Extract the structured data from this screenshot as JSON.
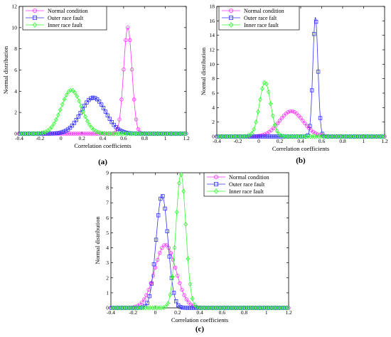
{
  "panel_labels": [
    "(a)",
    "(b)",
    "(c)"
  ],
  "colors": {
    "normal": "#ff33ff",
    "outer": "#3333ff",
    "inner": "#33ff33",
    "axis": "#000000",
    "legend_border": "#000000"
  },
  "icons": {
    "normal": "circle-marker-icon",
    "outer": "square-marker-icon",
    "inner": "diamond-marker-icon"
  },
  "chart_data": [
    {
      "type": "line",
      "panel": "(a)",
      "xlabel": "Correlation coefficients",
      "ylabel": "Normal distribution",
      "xlim": [
        -0.4,
        1.2
      ],
      "ylim": [
        0,
        12
      ],
      "xticks": [
        "-0.4",
        "-0.2",
        "0",
        "0.2",
        "0.4",
        "0.6",
        "0.8",
        "1",
        "1.2"
      ],
      "yticks": [
        "0",
        "2",
        "4",
        "6",
        "8",
        "10",
        "12"
      ],
      "legend_position": "top-left",
      "grid": false,
      "series": [
        {
          "name": "Normal condition",
          "key": "normal",
          "marker": "circle",
          "mean": 0.64,
          "peak": 10.0
        },
        {
          "name": "Outer race fault",
          "key": "outer",
          "marker": "square",
          "mean": 0.31,
          "peak": 3.4
        },
        {
          "name": "Inner race fault",
          "key": "inner",
          "marker": "diamond",
          "mean": 0.1,
          "peak": 4.1
        }
      ]
    },
    {
      "type": "line",
      "panel": "(b)",
      "xlabel": "Correlation coefficients",
      "ylabel": "Normal distribution",
      "xlim": [
        -0.4,
        1.2
      ],
      "ylim": [
        0,
        18
      ],
      "xticks": [
        "-0.4",
        "-0.2",
        "0",
        "0.2",
        "0.4",
        "0.6",
        "0.8",
        "1",
        "1.2"
      ],
      "yticks": [
        "0",
        "2",
        "4",
        "6",
        "8",
        "10",
        "12",
        "14",
        "16",
        "18"
      ],
      "legend_position": "top-left",
      "grid": false,
      "series": [
        {
          "name": "Normal condition",
          "key": "normal",
          "marker": "circle",
          "mean": 0.31,
          "peak": 3.5
        },
        {
          "name": "Outer race falt",
          "key": "outer",
          "marker": "square",
          "mean": 0.54,
          "peak": 16.5
        },
        {
          "name": "Inner race fault",
          "key": "inner",
          "marker": "diamond",
          "mean": 0.06,
          "peak": 7.5
        }
      ]
    },
    {
      "type": "line",
      "panel": "(c)",
      "xlabel": "Correlation coefficients",
      "ylabel": "Normal distribution",
      "xlim": [
        -0.4,
        1.2
      ],
      "ylim": [
        0,
        9
      ],
      "xticks": [
        "-0.4",
        "-0.2",
        "0",
        "0.2",
        "0.4",
        "0.6",
        "0.8",
        "1",
        "1.2"
      ],
      "yticks": [
        "0",
        "1",
        "2",
        "3",
        "4",
        "5",
        "6",
        "7",
        "8",
        "9"
      ],
      "legend_position": "top-right",
      "grid": false,
      "series": [
        {
          "name": "Normal condition",
          "key": "normal",
          "marker": "circle",
          "mean": 0.09,
          "peak": 4.2
        },
        {
          "name": "Outer race fault",
          "key": "outer",
          "marker": "square",
          "mean": 0.06,
          "peak": 7.5
        },
        {
          "name": "Inner race fault",
          "key": "inner",
          "marker": "diamond",
          "mean": 0.23,
          "peak": 8.9
        }
      ]
    }
  ]
}
